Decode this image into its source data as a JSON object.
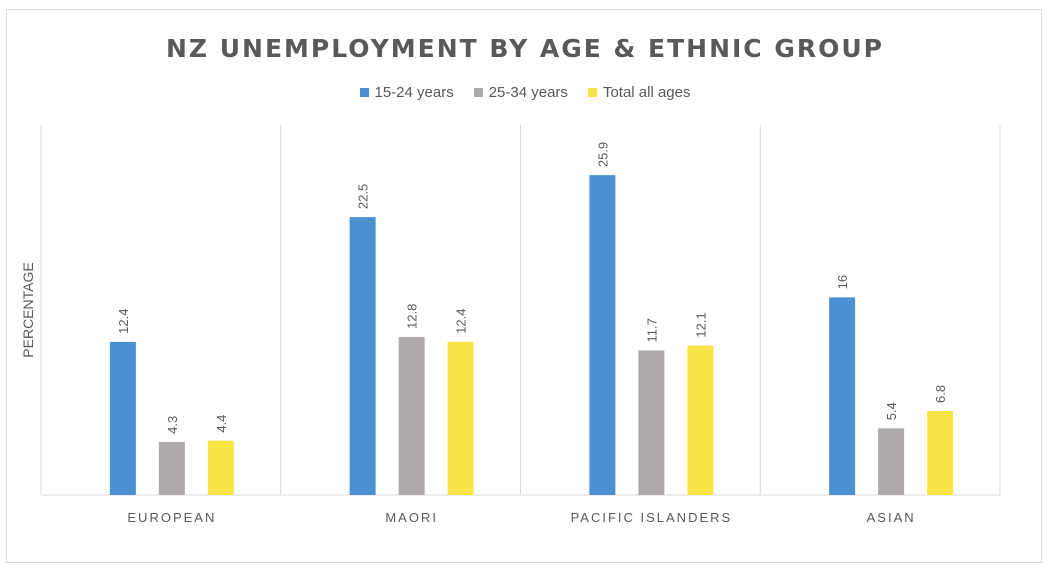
{
  "chart_data": {
    "type": "bar",
    "title": "NZ UNEMPLOYMENT BY AGE & ETHNIC GROUP",
    "xlabel": "",
    "ylabel": "PERCENTAGE",
    "categories": [
      "EUROPEAN",
      "MAORI",
      "PACIFIC ISLANDERS",
      "ASIAN"
    ],
    "series": [
      {
        "name": "15-24 years",
        "color": "#4a90d2",
        "values": [
          12.4,
          22.5,
          25.9,
          16
        ]
      },
      {
        "name": "25-34 years",
        "color": "#aeaaa9",
        "values": [
          4.3,
          12.8,
          11.7,
          5.4
        ]
      },
      {
        "name": "Total all ages",
        "color": "#f9e447",
        "values": [
          4.4,
          12.4,
          12.1,
          6.8
        ]
      }
    ],
    "value_labels": [
      [
        "12.4",
        "22.5",
        "25.9",
        "16"
      ],
      [
        "4.3",
        "12.8",
        "11.7",
        "5.4"
      ],
      [
        "4.4",
        "12.4",
        "12.1",
        "6.8"
      ]
    ],
    "ylim": [
      0,
      30
    ],
    "grid": false,
    "legend_position": "top",
    "axis_color": "#d9d9d9",
    "text_color": "#595959"
  }
}
